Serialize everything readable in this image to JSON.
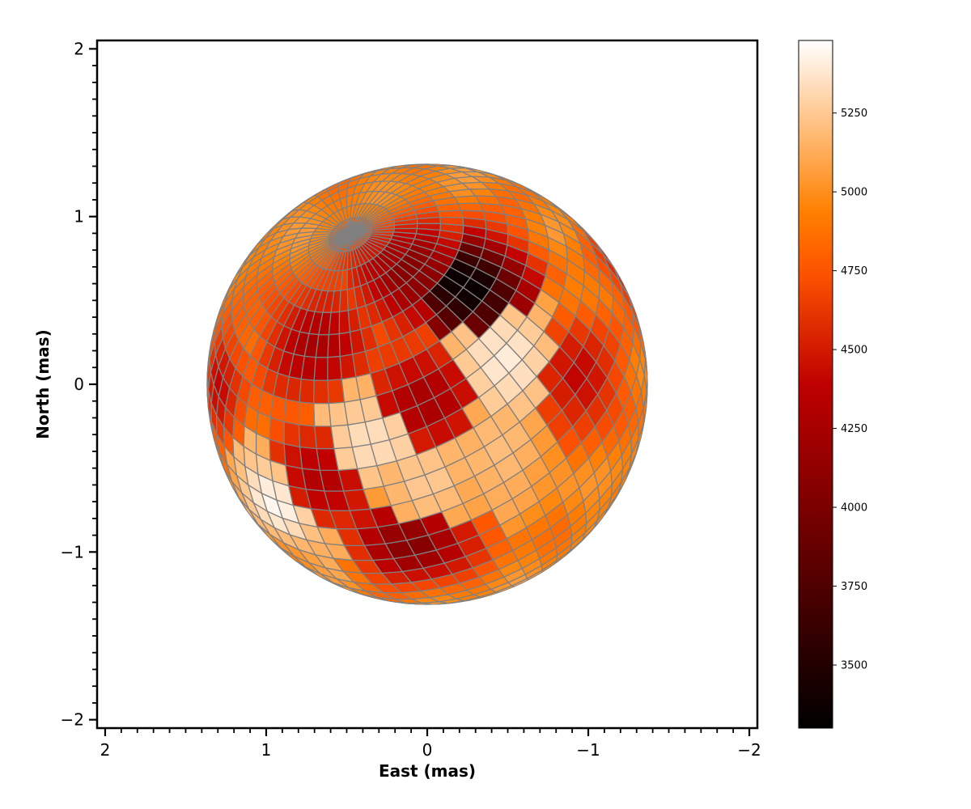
{
  "chart_data": {
    "type": "heatmap",
    "title": "",
    "xlabel": "East (mas)",
    "ylabel": "North (mas)",
    "xlim": [
      2.05,
      -2.05
    ],
    "ylim": [
      -2.05,
      2.05
    ],
    "x_ticks": [
      2,
      1,
      0,
      -1,
      -2
    ],
    "y_ticks": [
      2,
      1,
      0,
      -1,
      -2
    ],
    "x_tick_labels": [
      "2",
      "1",
      "0",
      "−1",
      "−2"
    ],
    "y_tick_labels": [
      "2",
      "1",
      "0",
      "−1",
      "−2"
    ],
    "minor_tick_step": 0.1,
    "stellar_disk": {
      "center": [
        0,
        0
      ],
      "radius_mas": 1.37,
      "pole_north": [
        0.35,
        0.68,
        0.64
      ],
      "grid_color": "#808080"
    },
    "temperature_features": [
      {
        "kind": "cool",
        "center": [
          -0.24,
          0.62
        ],
        "value": 3300
      },
      {
        "kind": "cool",
        "center": [
          0.08,
          0.7
        ],
        "value": 4050
      },
      {
        "kind": "cool",
        "center": [
          0.7,
          0.25
        ],
        "value": 4250
      },
      {
        "kind": "cool",
        "center": [
          0.02,
          -0.1
        ],
        "value": 4250
      },
      {
        "kind": "cool",
        "center": [
          0.65,
          -0.6
        ],
        "value": 4300
      },
      {
        "kind": "cool",
        "center": [
          0.1,
          -1.0
        ],
        "value": 4050
      },
      {
        "kind": "cool",
        "center": [
          -0.95,
          0.05
        ],
        "value": 4400
      },
      {
        "kind": "cool",
        "center": [
          -1.2,
          0.7
        ],
        "value": 4500
      },
      {
        "kind": "cool",
        "center": [
          1.3,
          0.0
        ],
        "value": 4400
      },
      {
        "kind": "hot",
        "center": [
          -0.5,
          0.15
        ],
        "value": 5400
      },
      {
        "kind": "hot",
        "center": [
          0.35,
          -0.35
        ],
        "value": 5350
      },
      {
        "kind": "hot",
        "center": [
          0.0,
          -0.6
        ],
        "value": 5250
      },
      {
        "kind": "hot",
        "center": [
          0.95,
          -0.75
        ],
        "value": 5450
      },
      {
        "kind": "hot",
        "center": [
          -0.45,
          -0.42
        ],
        "value": 5200
      }
    ],
    "base_temperature": 4950,
    "colorbar": {
      "colormap": "gist_heat",
      "vmin": 3300,
      "vmax": 5480,
      "ticks": [
        3500,
        3750,
        4000,
        4250,
        4500,
        4750,
        5000,
        5250
      ],
      "tick_labels": [
        "3500",
        "3750",
        "4000",
        "4250",
        "4500",
        "4750",
        "5000",
        "5250"
      ]
    },
    "grid": false,
    "legend": "none"
  }
}
